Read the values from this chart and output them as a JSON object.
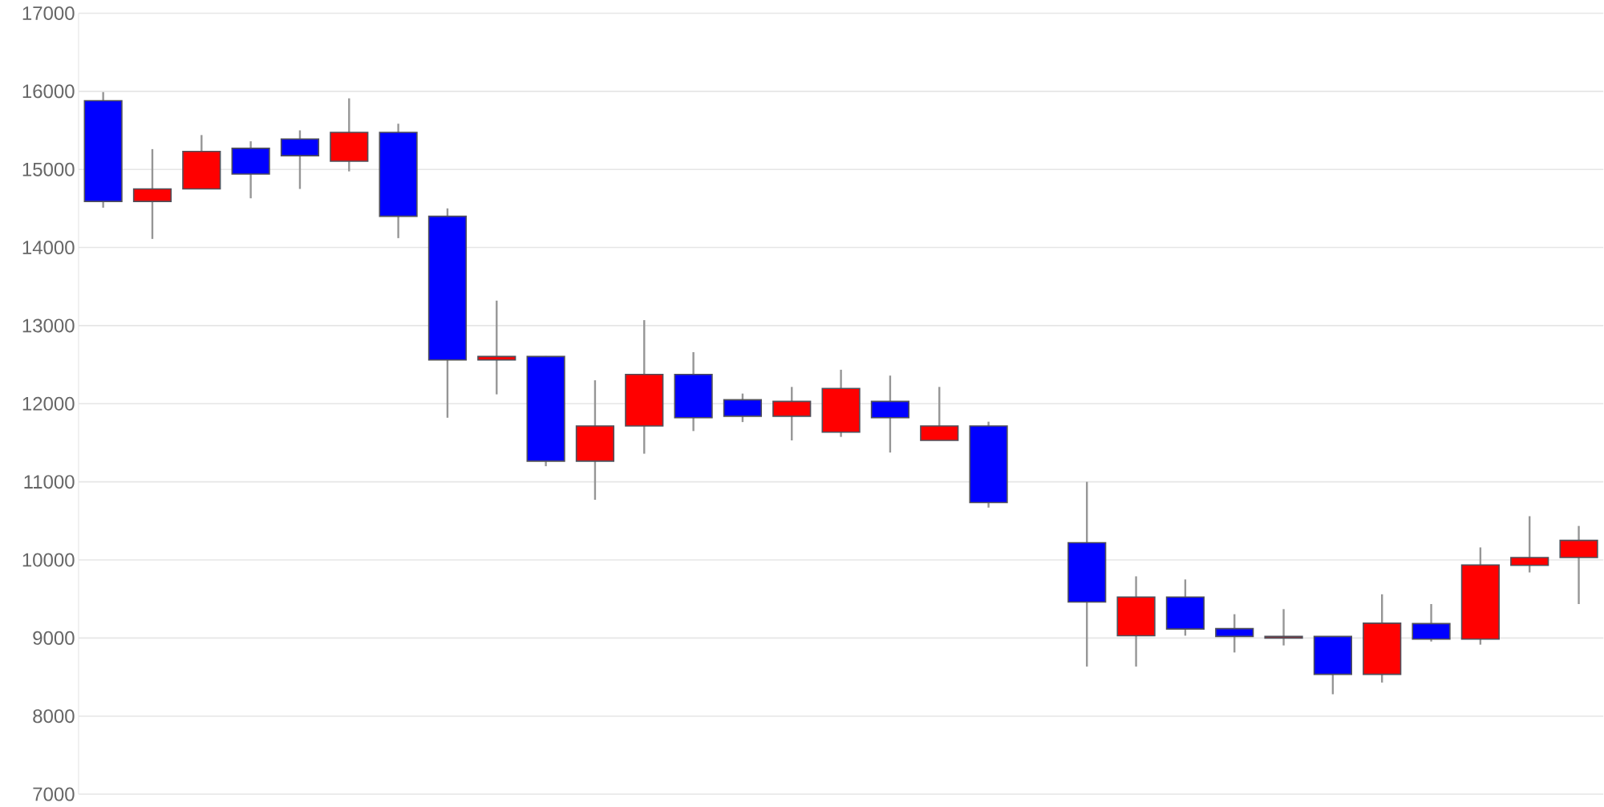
{
  "chart_data": {
    "type": "candlestick",
    "categories": [
      null,
      null,
      null,
      null,
      null,
      null,
      null,
      null,
      null,
      null,
      null,
      null,
      null,
      null,
      null,
      null,
      null,
      null,
      null,
      null,
      null,
      null,
      null,
      null,
      null,
      null,
      null,
      null,
      null,
      null,
      null
    ],
    "ohlc": [
      [
        15880,
        15990,
        14510,
        14590
      ],
      [
        14590,
        15260,
        14110,
        14750
      ],
      [
        14750,
        15440,
        14750,
        15230
      ],
      [
        15270,
        15360,
        14630,
        14940
      ],
      [
        15390,
        15500,
        14750,
        15175
      ],
      [
        15105,
        15910,
        14975,
        15475
      ],
      [
        15475,
        15585,
        14120,
        14400
      ],
      [
        14400,
        14500,
        11820,
        12560
      ],
      [
        12560,
        13320,
        12120,
        12605
      ],
      [
        12605,
        12610,
        11200,
        11265
      ],
      [
        11265,
        12300,
        10770,
        11715
      ],
      [
        11715,
        13070,
        11360,
        12375
      ],
      [
        12375,
        12660,
        11650,
        11820
      ],
      [
        12050,
        12130,
        11765,
        11840
      ],
      [
        11840,
        12215,
        11530,
        12030
      ],
      [
        11635,
        12435,
        11575,
        12195
      ],
      [
        12030,
        12360,
        11375,
        11820
      ],
      [
        11530,
        12215,
        11530,
        11715
      ],
      [
        11715,
        11770,
        10670,
        10735
      ],
      null,
      [
        10220,
        11000,
        8635,
        9460
      ],
      [
        9030,
        9790,
        8635,
        9525
      ],
      [
        9525,
        9750,
        9030,
        9115
      ],
      [
        9120,
        9305,
        8815,
        9020
      ],
      [
        9000,
        9370,
        8905,
        9020
      ],
      [
        9020,
        9020,
        8280,
        8535
      ],
      [
        8535,
        9560,
        8430,
        9190
      ],
      [
        9185,
        9435,
        8955,
        8985
      ],
      [
        8985,
        10160,
        8915,
        9935
      ],
      [
        9930,
        10560,
        9840,
        10030
      ],
      [
        10030,
        10435,
        9435,
        10250
      ]
    ],
    "colors": [
      "#0000ff",
      "#ff0000",
      "#ff0000",
      "#0000ff",
      "#0000ff",
      "#ff0000",
      "#0000ff",
      "#0000ff",
      "#ff0000",
      "#0000ff",
      "#ff0000",
      "#ff0000",
      "#0000ff",
      "#0000ff",
      "#ff0000",
      "#ff0000",
      "#0000ff",
      "#ff0000",
      "#0000ff",
      null,
      "#0000ff",
      "#ff0000",
      "#0000ff",
      "#0000ff",
      "#ff0000",
      "#0000ff",
      "#ff0000",
      "#0000ff",
      "#ff0000",
      "#ff0000",
      "#ff0000"
    ],
    "ylim": [
      7000,
      17000
    ],
    "yticks": [
      7000,
      8000,
      9000,
      10000,
      11000,
      12000,
      13000,
      14000,
      15000,
      16000,
      17000
    ],
    "grid": "y",
    "tick_labels": "y"
  }
}
